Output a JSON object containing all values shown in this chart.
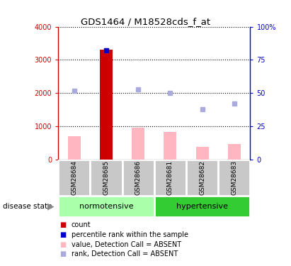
{
  "title": "GDS1464 / M18528cds_f_at",
  "samples": [
    "GSM28684",
    "GSM28685",
    "GSM28686",
    "GSM28681",
    "GSM28682",
    "GSM28683"
  ],
  "bar_values": [
    700,
    3300,
    950,
    830,
    390,
    480
  ],
  "bar_color_absent": "#FFB6C1",
  "bar_color_present": "#CC0000",
  "bar_present_index": 1,
  "dot_rank_values": [
    52,
    82,
    53,
    50,
    38,
    42
  ],
  "dot_rank_color": "#AAAADD",
  "dot_percentile_value": 82,
  "dot_percentile_index": 1,
  "dot_percentile_color": "#0000CC",
  "ylim_left": [
    0,
    4000
  ],
  "ylim_right": [
    0,
    100
  ],
  "yticks_left": [
    0,
    1000,
    2000,
    3000,
    4000
  ],
  "yticks_right": [
    0,
    25,
    50,
    75,
    100
  ],
  "yticklabels_left": [
    "0",
    "1000",
    "2000",
    "3000",
    "4000"
  ],
  "yticklabels_right": [
    "0",
    "25",
    "50",
    "75",
    "100%"
  ],
  "left_axis_color": "#CC0000",
  "right_axis_color": "#0000CC",
  "sample_box_color": "#C8C8C8",
  "norm_color": "#AAFFAA",
  "hyp_color": "#33CC33",
  "bar_width": 0.4,
  "legend_items": [
    {
      "color": "#CC0000",
      "label": "count"
    },
    {
      "color": "#0000CC",
      "label": "percentile rank within the sample"
    },
    {
      "color": "#FFB6C1",
      "label": "value, Detection Call = ABSENT"
    },
    {
      "color": "#AAAADD",
      "label": "rank, Detection Call = ABSENT"
    }
  ]
}
